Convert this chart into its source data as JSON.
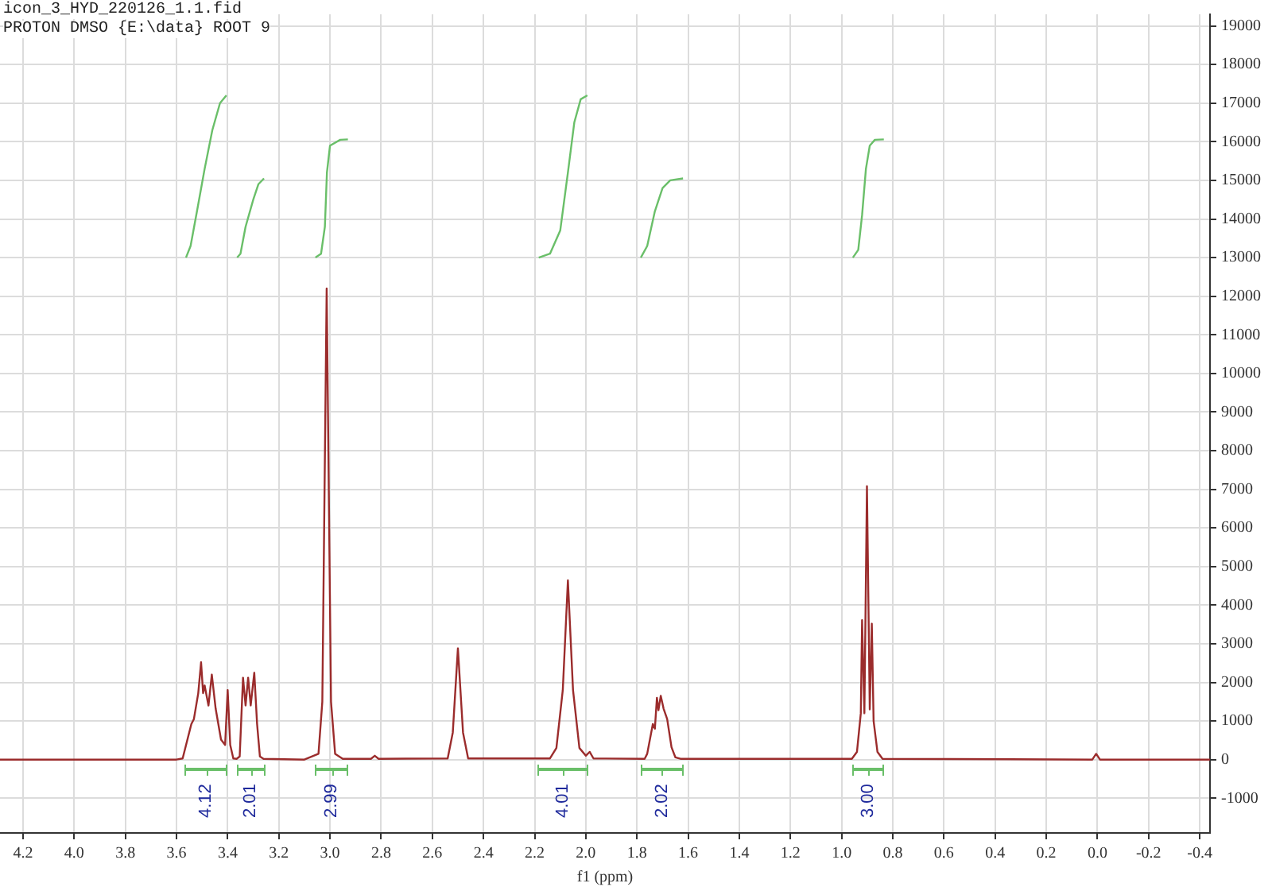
{
  "chart_data": {
    "type": "line",
    "title": "icon_3_HYD_220126_1.1.fid",
    "subtitle": "PROTON DMSO {E:\\data} ROOT 9",
    "xlabel": "f1 (ppm)",
    "xlim": [
      4.29,
      -0.44
    ],
    "xticks": [
      {
        "value": 4.2,
        "label": "4.2"
      },
      {
        "value": 4,
        "label": "4.0"
      },
      {
        "value": 3.8,
        "label": "3.8"
      },
      {
        "value": 3.6,
        "label": "3.6"
      },
      {
        "value": 3.4,
        "label": "3.4"
      },
      {
        "value": 3.2,
        "label": "3.2"
      },
      {
        "value": 3,
        "label": "3.0"
      },
      {
        "value": 2.8,
        "label": "2.8"
      },
      {
        "value": 2.6,
        "label": "2.6"
      },
      {
        "value": 2.4,
        "label": "2.4"
      },
      {
        "value": 2.2,
        "label": "2.2"
      },
      {
        "value": 2,
        "label": "2.0"
      },
      {
        "value": 1.8,
        "label": "1.8"
      },
      {
        "value": 1.6,
        "label": "1.6"
      },
      {
        "value": 1.4,
        "label": "1.4"
      },
      {
        "value": 1.2,
        "label": "1.2"
      },
      {
        "value": 1,
        "label": "1.0"
      },
      {
        "value": 0.8,
        "label": "0.8"
      },
      {
        "value": 0.6,
        "label": "0.6"
      },
      {
        "value": 0.4,
        "label": "0.4"
      },
      {
        "value": 0.2,
        "label": "0.2"
      },
      {
        "value": 0,
        "label": "0.0"
      },
      {
        "value": -0.2,
        "label": "-0.2"
      },
      {
        "value": -0.4,
        "label": "-0.4"
      }
    ],
    "ylim": [
      -1900,
      19300
    ],
    "yticks": [
      -1000,
      0,
      1000,
      2000,
      3000,
      4000,
      5000,
      6000,
      7000,
      8000,
      9000,
      10000,
      11000,
      12000,
      13000,
      14000,
      15000,
      16000,
      17000,
      18000,
      19000
    ],
    "grid": true,
    "legend": false,
    "marker": "none",
    "line_style": "solid",
    "series": [
      {
        "color": "#9b2c2c",
        "x": [
          4.29,
          3.6,
          3.576,
          3.542,
          3.532,
          3.515,
          3.504,
          3.496,
          3.49,
          3.475,
          3.462,
          3.447,
          3.426,
          3.41,
          3.4,
          3.39,
          3.378,
          3.365,
          3.353,
          3.34,
          3.33,
          3.32,
          3.31,
          3.296,
          3.285,
          3.274,
          3.26,
          3.1,
          3.045,
          3.03,
          3.013,
          2.996,
          2.98,
          2.95,
          2.84,
          2.825,
          2.81,
          2.54,
          2.52,
          2.5,
          2.48,
          2.46,
          2.14,
          2.115,
          2.09,
          2.07,
          2.05,
          2.025,
          2.0,
          1.985,
          1.97,
          1.77,
          1.76,
          1.738,
          1.73,
          1.722,
          1.716,
          1.707,
          1.696,
          1.682,
          1.665,
          1.65,
          1.63,
          0.96,
          0.94,
          0.925,
          0.92,
          0.911,
          0.901,
          0.89,
          0.882,
          0.875,
          0.86,
          0.84,
          0.02,
          0.005,
          -0.01,
          -0.44
        ],
        "values": [
          0,
          0,
          30,
          920,
          1050,
          1720,
          2520,
          1720,
          1920,
          1400,
          2200,
          1320,
          520,
          380,
          1800,
          380,
          30,
          20,
          80,
          2120,
          1400,
          2120,
          1400,
          2250,
          920,
          80,
          20,
          0,
          150,
          1500,
          12200,
          1500,
          150,
          20,
          20,
          100,
          20,
          30,
          700,
          2880,
          700,
          30,
          30,
          300,
          1800,
          4640,
          1800,
          300,
          100,
          200,
          30,
          20,
          150,
          920,
          800,
          1600,
          1280,
          1650,
          1320,
          1050,
          320,
          60,
          20,
          20,
          200,
          1200,
          3610,
          1200,
          7080,
          1300,
          3520,
          1000,
          200,
          20,
          0,
          150,
          0,
          0
        ]
      },
      {
        "color": "#6abf69",
        "x": [
          3.563,
          3.545,
          3.52,
          3.49,
          3.46,
          3.43,
          3.405
        ],
        "values": [
          13000,
          13300,
          14200,
          15300,
          16300,
          17000,
          17200
        ]
      },
      {
        "color": "#6abf69",
        "x": [
          3.363,
          3.35,
          3.33,
          3.3,
          3.28,
          3.258
        ],
        "values": [
          13000,
          13100,
          13800,
          14500,
          14900,
          15050
        ]
      },
      {
        "color": "#6abf69",
        "x": [
          3.057,
          3.035,
          3.02,
          3.012,
          3.0,
          2.96,
          2.93
        ],
        "values": [
          13000,
          13100,
          13800,
          15200,
          15900,
          16050,
          16060
        ]
      },
      {
        "color": "#6abf69",
        "x": [
          2.184,
          2.14,
          2.1,
          2.07,
          2.045,
          2.02,
          1.994
        ],
        "values": [
          13000,
          13100,
          13700,
          15200,
          16500,
          17100,
          17200
        ]
      },
      {
        "color": "#6abf69",
        "x": [
          1.785,
          1.76,
          1.73,
          1.7,
          1.67,
          1.62
        ],
        "values": [
          13000,
          13300,
          14200,
          14800,
          15000,
          15050
        ]
      },
      {
        "color": "#6abf69",
        "x": [
          0.956,
          0.935,
          0.92,
          0.905,
          0.89,
          0.87,
          0.835
        ],
        "values": [
          13000,
          13200,
          14100,
          15300,
          15900,
          16050,
          16060
        ]
      }
    ],
    "annotations": [
      "4.12",
      "2.01",
      "2.99",
      "4.01",
      "2.02",
      "3.00"
    ]
  }
}
